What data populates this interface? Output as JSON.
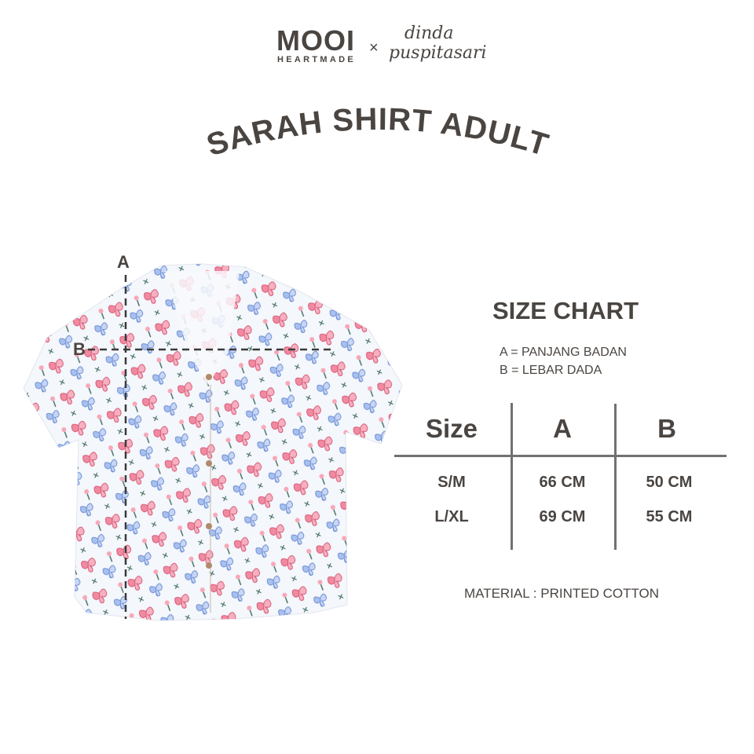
{
  "brand": {
    "name": "MOOI",
    "sub": "HEARTMADE",
    "separator": "×",
    "collab_line1": "dinda",
    "collab_line2": "puspitasari"
  },
  "title": "SARAH SHIRT ADULT",
  "measure_labels": {
    "a": "A",
    "b": "B"
  },
  "size_chart": {
    "title": "SIZE CHART",
    "legend": [
      "A = PANJANG BADAN",
      "B = LEBAR DADA"
    ],
    "headers": [
      "Size",
      "A",
      "B"
    ],
    "rows": [
      [
        "S/M",
        "66 CM",
        "50 CM"
      ],
      [
        "L/XL",
        "69 CM",
        "55 CM"
      ]
    ],
    "material": "MATERIAL : PRINTED COTTON"
  },
  "colors": {
    "text": "#4a4541",
    "lines": "#727070",
    "pink": "#e8708a",
    "blue": "#7f9fdc"
  }
}
